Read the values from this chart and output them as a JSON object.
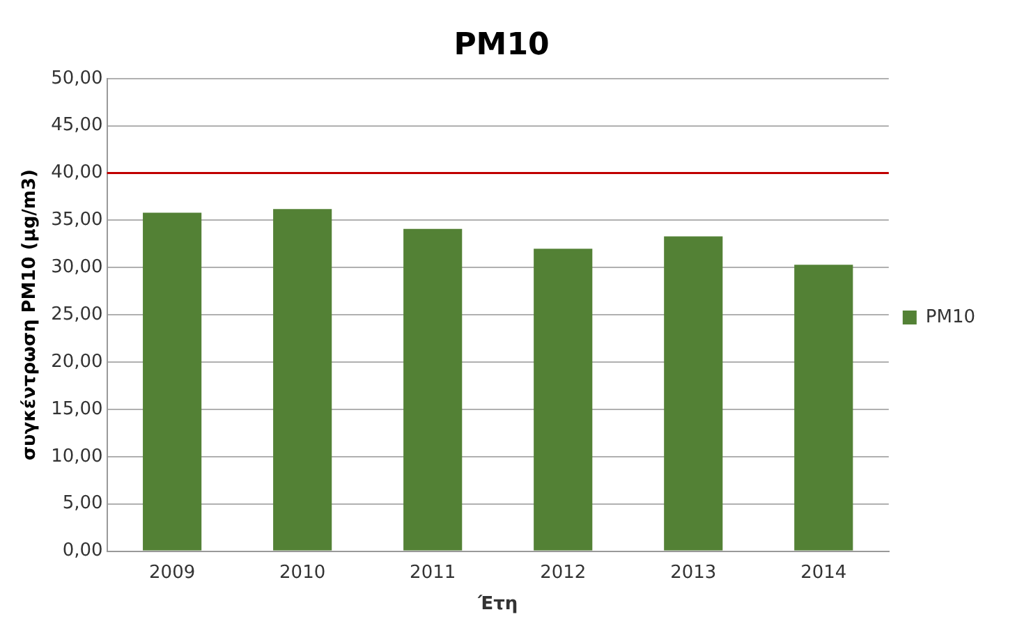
{
  "chart_data": {
    "type": "bar",
    "title": "PM10",
    "xlabel": "Έτη",
    "ylabel": "συγκέντρωση PM10 (μg/m3)",
    "categories": [
      "2009",
      "2010",
      "2011",
      "2012",
      "2013",
      "2014"
    ],
    "series": [
      {
        "name": "PM10",
        "color": "#538135",
        "values": [
          35.8,
          36.2,
          34.1,
          32.0,
          33.3,
          30.3
        ]
      }
    ],
    "ylim": [
      0,
      50
    ],
    "yticks": [
      {
        "value": 0,
        "label": "0,00"
      },
      {
        "value": 5,
        "label": "5,00"
      },
      {
        "value": 10,
        "label": "10,00"
      },
      {
        "value": 15,
        "label": "15,00"
      },
      {
        "value": 20,
        "label": "20,00"
      },
      {
        "value": 25,
        "label": "25,00"
      },
      {
        "value": 30,
        "label": "30,00"
      },
      {
        "value": 35,
        "label": "35,00"
      },
      {
        "value": 40,
        "label": "40,00"
      },
      {
        "value": 45,
        "label": "45,00"
      },
      {
        "value": 50,
        "label": "50,00"
      }
    ],
    "ref_lines": [
      {
        "axis": "y",
        "value": 40,
        "color": "#c00000"
      }
    ],
    "grid": "y",
    "legend": "right"
  }
}
